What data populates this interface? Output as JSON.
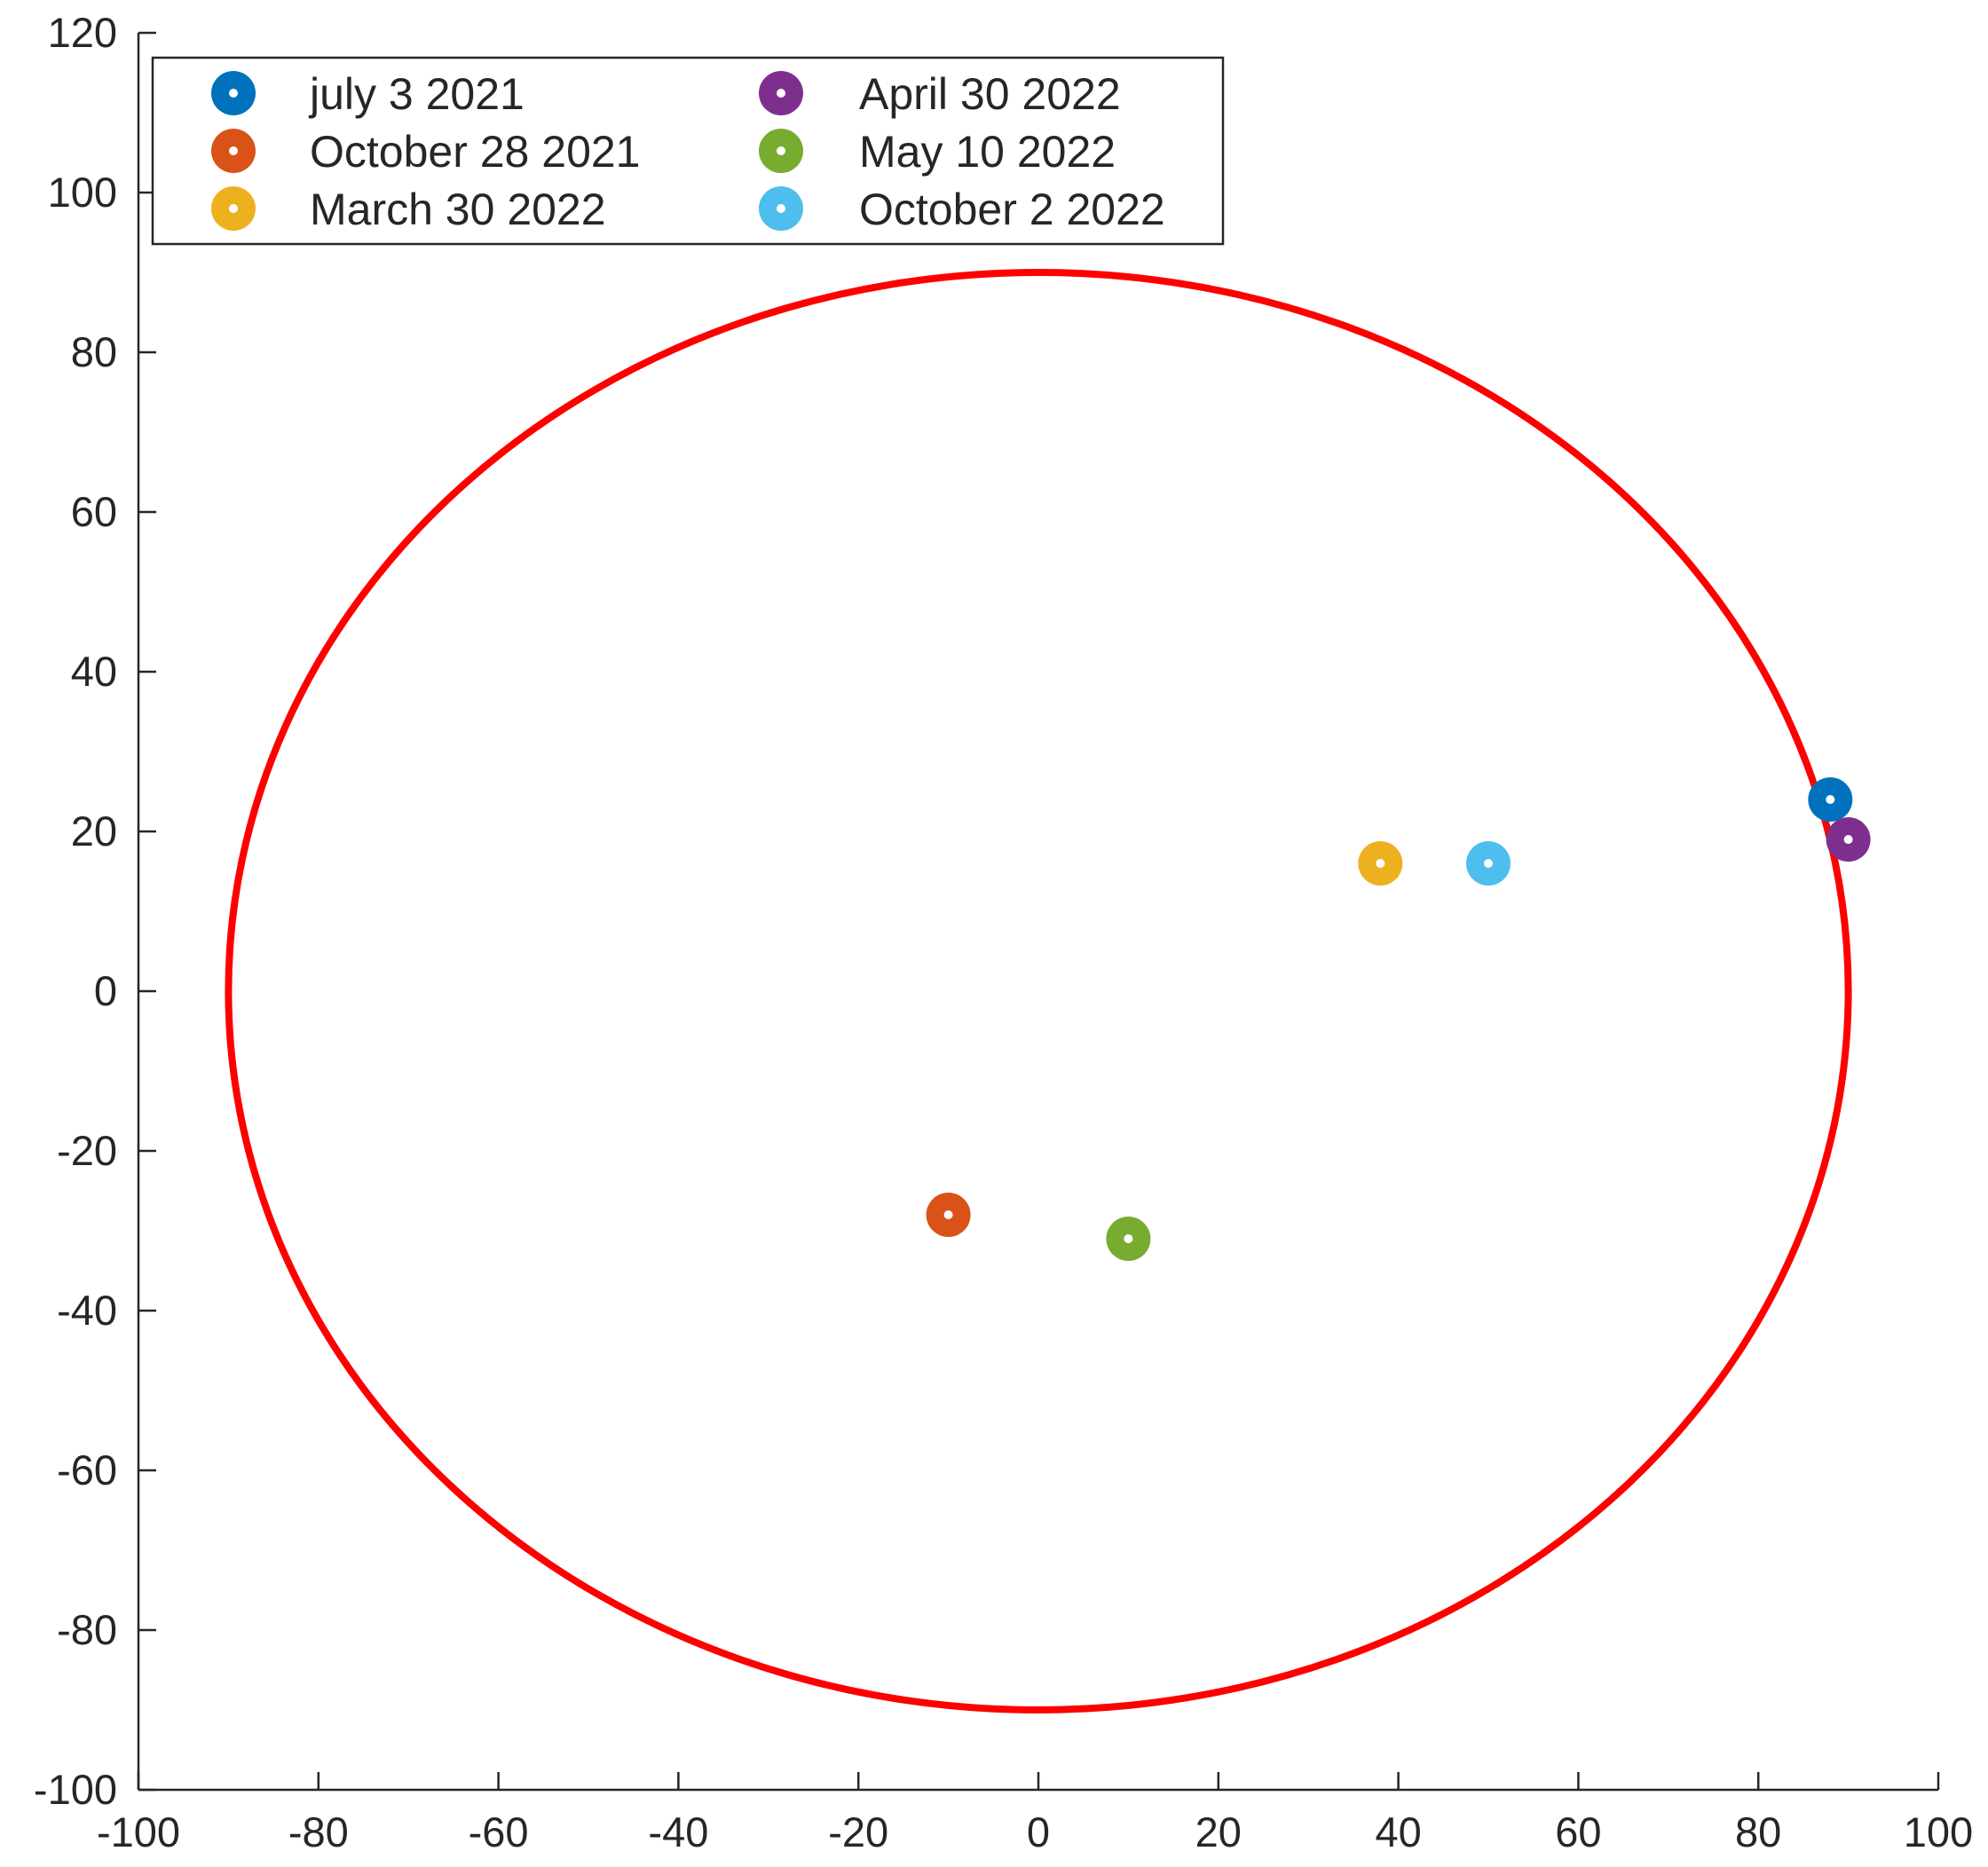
{
  "chart_data": {
    "type": "scatter",
    "title": "",
    "xlabel": "",
    "ylabel": "",
    "xlim": [
      -100,
      100
    ],
    "ylim": [
      -100,
      120
    ],
    "xticks": [
      -100,
      -80,
      -60,
      -40,
      -20,
      0,
      20,
      40,
      60,
      80,
      100
    ],
    "yticks": [
      -100,
      -80,
      -60,
      -40,
      -20,
      0,
      20,
      40,
      60,
      80,
      100,
      120
    ],
    "xtick_labels": [
      "-100",
      "-80",
      "-60",
      "-40",
      "-20",
      "0",
      "20",
      "40",
      "60",
      "80",
      "100"
    ],
    "ytick_labels": [
      "-100",
      "-80",
      "-60",
      "-40",
      "-20",
      "0",
      "20",
      "40",
      "60",
      "80",
      "100",
      "120"
    ],
    "grid": false,
    "legend_position": "top-left",
    "legend_columns": 2,
    "boundary": {
      "shape": "circle",
      "center": [
        0,
        0
      ],
      "radius": 90,
      "color": "#ff0000"
    },
    "series": [
      {
        "name": "july 3 2021",
        "color": "#0072bd",
        "points": [
          [
            88,
            24
          ]
        ]
      },
      {
        "name": "October 28 2021",
        "color": "#d95319",
        "points": [
          [
            -10,
            -28
          ]
        ]
      },
      {
        "name": "March 30 2022",
        "color": "#edb120",
        "points": [
          [
            38,
            16
          ]
        ]
      },
      {
        "name": "April 30 2022",
        "color": "#7e2f8e",
        "points": [
          [
            90,
            19
          ]
        ]
      },
      {
        "name": "May 10 2022",
        "color": "#77ac30",
        "points": [
          [
            10,
            -31
          ]
        ]
      },
      {
        "name": "October 2 2022",
        "color": "#4dbeee",
        "points": [
          [
            50,
            16
          ]
        ]
      }
    ]
  }
}
